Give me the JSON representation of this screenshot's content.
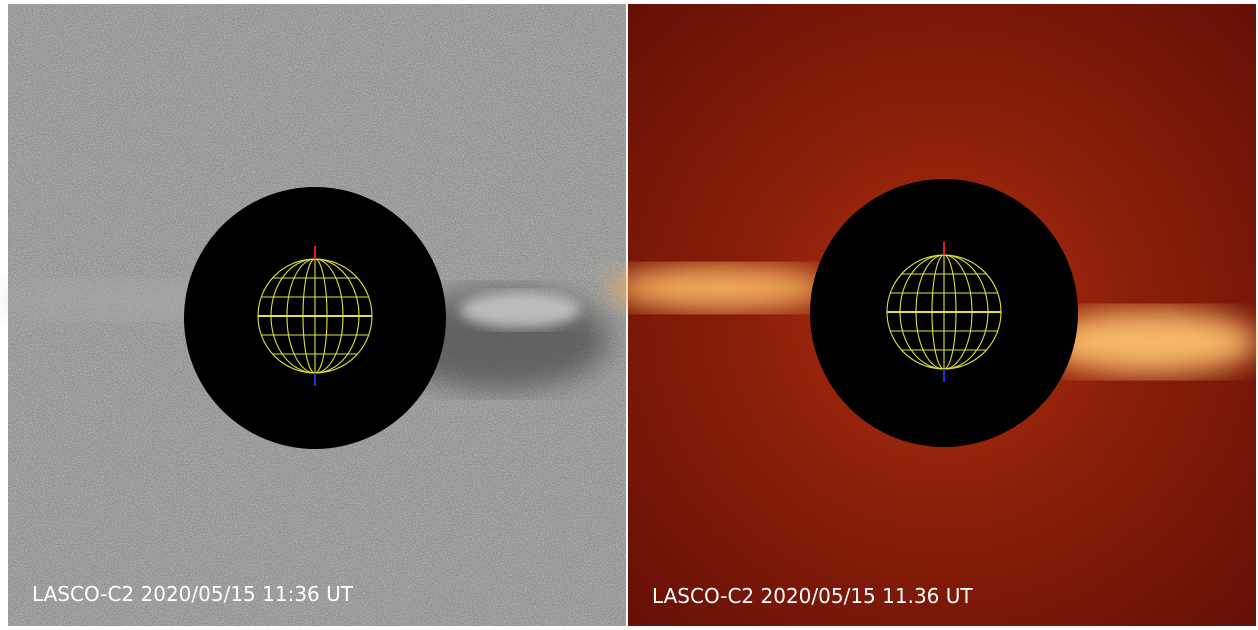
{
  "panels": [
    {
      "caption": "LASCO-C2 2020/05/15 11:36 UT"
    },
    {
      "caption": "LASCO-C2 2020/05/15 11.36 UT"
    }
  ]
}
